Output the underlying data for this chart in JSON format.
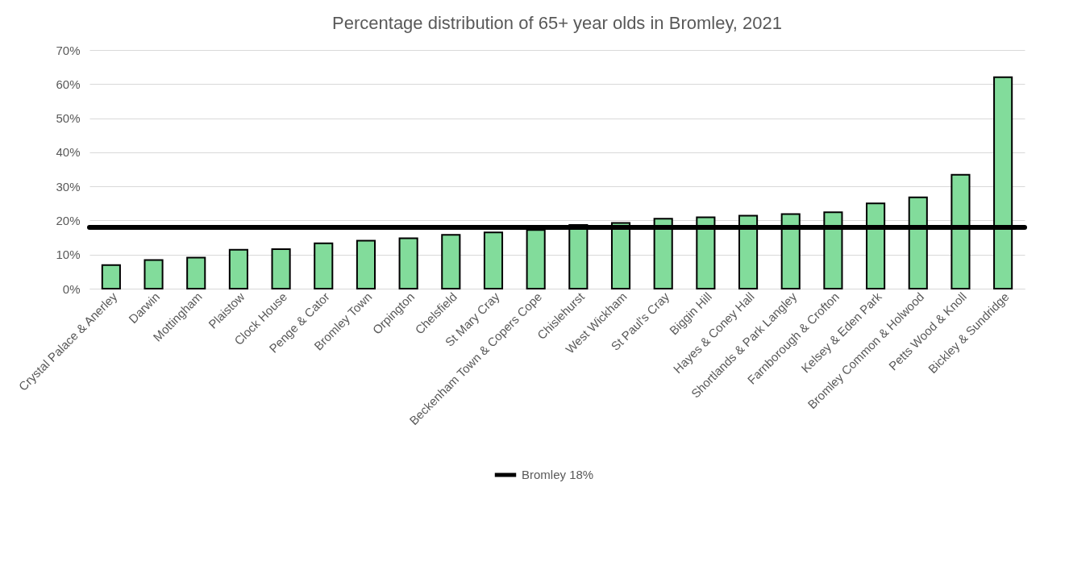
{
  "chart_data": {
    "type": "bar",
    "title": "Percentage distribution of 65+ year olds in Bromley, 2021",
    "categories": [
      "Crystal Palace & Anerley",
      "Darwin",
      "Mottingham",
      "Plaistow",
      "Clock House",
      "Penge & Cator",
      "Bromley Town",
      "Orpington",
      "Chelsfield",
      "St Mary Cray",
      "Beckenham Town & Copers Cope",
      "Chislehurst",
      "West Wickham",
      "St Paul's Cray",
      "Biggin Hill",
      "Hayes & Coney Hall",
      "Shortlands & Park Langley",
      "Farnborough & Crofton",
      "Kelsey & Eden Park",
      "Bromley Common & Holwood",
      "Petts Wood & Knoll",
      "Bickley & Sundridge"
    ],
    "values": [
      6.9,
      8.4,
      9.1,
      11.4,
      11.6,
      13.3,
      14.1,
      14.8,
      15.8,
      16.5,
      17.2,
      18.7,
      19.3,
      20.5,
      20.9,
      21.4,
      21.9,
      22.4,
      25.0,
      26.8,
      33.4,
      62.0
    ],
    "color": "#82dc9b",
    "ylim": [
      0,
      70
    ],
    "yticks": [
      {
        "value": 0,
        "label": "0%"
      },
      {
        "value": 10,
        "label": "10%"
      },
      {
        "value": 20,
        "label": "20%"
      },
      {
        "value": 30,
        "label": "30%"
      },
      {
        "value": 40,
        "label": "40%"
      },
      {
        "value": 50,
        "label": "50%"
      },
      {
        "value": 60,
        "label": "60%"
      },
      {
        "value": 70,
        "label": "70%"
      }
    ],
    "ref_lines": [
      {
        "axis": "y",
        "value": 18,
        "label": "Bromley 18%",
        "color": "#000000"
      }
    ],
    "grid": "y",
    "legend": "bottom"
  }
}
